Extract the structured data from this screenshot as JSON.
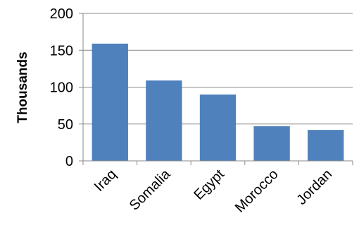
{
  "chart_data": {
    "type": "bar",
    "title": "",
    "xlabel": "",
    "ylabel": "Thousands",
    "categories": [
      "Iraq",
      "Somalia",
      "Egypt",
      "Morocco",
      "Jordan"
    ],
    "values": [
      159,
      109,
      90,
      47,
      42
    ],
    "ylim": [
      0,
      200
    ],
    "yticks": [
      0,
      50,
      100,
      150,
      200
    ],
    "grid": true,
    "legend": "none",
    "bar_color": "#4F81BD"
  }
}
